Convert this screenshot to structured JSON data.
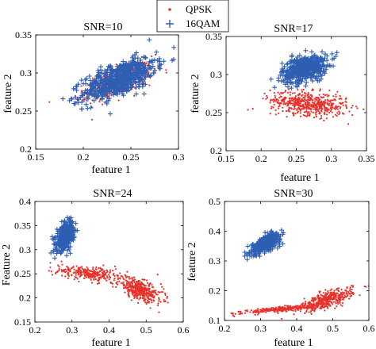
{
  "legend": {
    "position": "top-center",
    "items": [
      {
        "label": "QPSK",
        "marker": "dot",
        "color": "#e8312a"
      },
      {
        "label": "16QAM",
        "marker": "plus",
        "color": "#2f5fb3"
      }
    ]
  },
  "chart_data": [
    {
      "type": "scatter",
      "title": "SNR=10",
      "xlabel": "feature 1",
      "ylabel": "feature 2",
      "xlim": [
        0.15,
        0.3
      ],
      "ylim": [
        0.2,
        0.35
      ],
      "xticks": [
        0.15,
        0.2,
        0.25,
        0.3
      ],
      "yticks": [
        0.2,
        0.25,
        0.3,
        0.35
      ],
      "grid": false,
      "series": [
        {
          "name": "QPSK",
          "color": "#e8312a",
          "marker": "dot",
          "clusters": [
            {
              "cx": 0.237,
              "cy": 0.289,
              "sx": 0.018,
              "sy": 0.012,
              "rho": 0.65,
              "n": 520
            }
          ]
        },
        {
          "name": "16QAM",
          "color": "#2f5fb3",
          "marker": "plus",
          "clusters": [
            {
              "cx": 0.238,
              "cy": 0.292,
              "sx": 0.019,
              "sy": 0.014,
              "rho": 0.65,
              "n": 620
            }
          ]
        }
      ]
    },
    {
      "type": "scatter",
      "title": "SNR=17",
      "xlabel": "feature 1",
      "ylabel": "feature 2",
      "xlim": [
        0.15,
        0.35
      ],
      "ylim": [
        0.2,
        0.35
      ],
      "xticks": [
        0.15,
        0.2,
        0.25,
        0.3,
        0.35
      ],
      "yticks": [
        0.2,
        0.25,
        0.3,
        0.35
      ],
      "grid": false,
      "series": [
        {
          "name": "QPSK",
          "color": "#e8312a",
          "marker": "dot",
          "clusters": [
            {
              "cx": 0.268,
              "cy": 0.262,
              "sx": 0.027,
              "sy": 0.008,
              "rho": -0.3,
              "n": 560
            }
          ]
        },
        {
          "name": "16QAM",
          "color": "#2f5fb3",
          "marker": "plus",
          "clusters": [
            {
              "cx": 0.262,
              "cy": 0.308,
              "sx": 0.016,
              "sy": 0.009,
              "rho": 0.45,
              "n": 520
            }
          ]
        }
      ]
    },
    {
      "type": "scatter",
      "title": "SNR=24",
      "xlabel": "feature 1",
      "ylabel": "Feature 2",
      "xlim": [
        0.2,
        0.6
      ],
      "ylim": [
        0.15,
        0.4
      ],
      "xticks": [
        0.2,
        0.3,
        0.4,
        0.5,
        0.6
      ],
      "yticks": [
        0.15,
        0.2,
        0.25,
        0.3,
        0.35,
        0.4
      ],
      "grid": false,
      "series": [
        {
          "name": "QPSK",
          "color": "#e8312a",
          "marker": "dot",
          "clusters": [
            {
              "cx": 0.35,
              "cy": 0.25,
              "sx": 0.05,
              "sy": 0.009,
              "rho": -0.55,
              "n": 300
            },
            {
              "cx": 0.485,
              "cy": 0.215,
              "sx": 0.03,
              "sy": 0.012,
              "rho": -0.6,
              "n": 380
            }
          ]
        },
        {
          "name": "16QAM",
          "color": "#2f5fb3",
          "marker": "plus",
          "clusters": [
            {
              "cx": 0.283,
              "cy": 0.328,
              "sx": 0.012,
              "sy": 0.014,
              "rho": 0.5,
              "n": 420
            }
          ]
        }
      ]
    },
    {
      "type": "scatter",
      "title": "SNR=30",
      "xlabel": "feature 1",
      "ylabel": "feature 2",
      "xlim": [
        0.2,
        0.6
      ],
      "ylim": [
        0.1,
        0.5
      ],
      "xticks": [
        0.2,
        0.3,
        0.4,
        0.5,
        0.6
      ],
      "yticks": [
        0.1,
        0.2,
        0.3,
        0.4,
        0.5
      ],
      "grid": false,
      "series": [
        {
          "name": "QPSK",
          "color": "#e8312a",
          "marker": "dot",
          "clusters": [
            {
              "cx": 0.37,
              "cy": 0.14,
              "sx": 0.06,
              "sy": 0.008,
              "rho": 0.85,
              "n": 320
            },
            {
              "cx": 0.485,
              "cy": 0.17,
              "sx": 0.035,
              "sy": 0.018,
              "rho": 0.7,
              "n": 380
            }
          ]
        },
        {
          "name": "16QAM",
          "color": "#2f5fb3",
          "marker": "plus",
          "clusters": [
            {
              "cx": 0.315,
              "cy": 0.36,
              "sx": 0.02,
              "sy": 0.017,
              "rho": 0.7,
              "n": 420
            }
          ]
        }
      ]
    }
  ]
}
